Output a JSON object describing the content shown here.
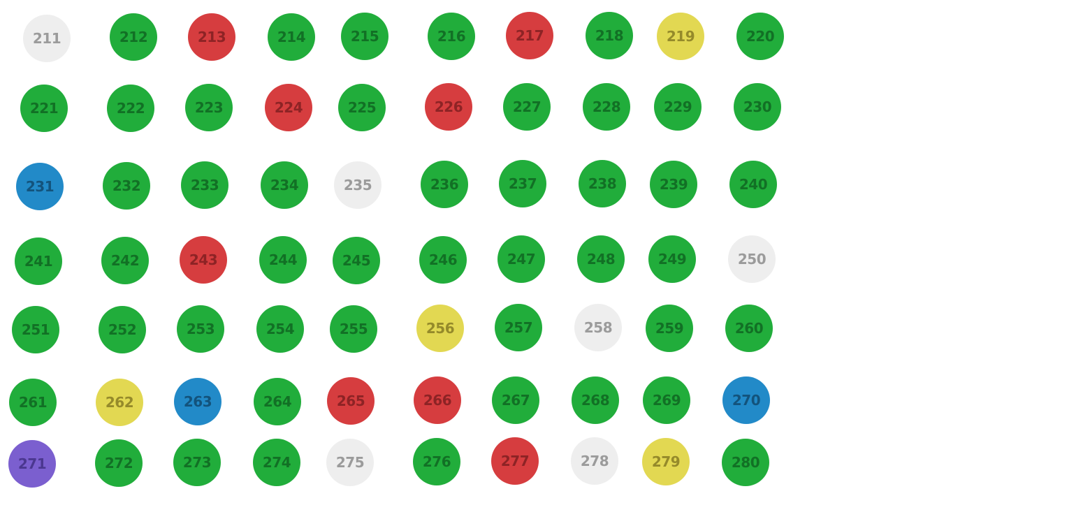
{
  "status_colors": {
    "green": {
      "fill": "#21ad3b",
      "text": "#127025"
    },
    "red": {
      "fill": "#d63d3f",
      "text": "#8d2325"
    },
    "yellow": {
      "fill": "#e2d852",
      "text": "#958a2a"
    },
    "white": {
      "fill": "#eeeeee",
      "text": "#9b9b9b"
    },
    "blue": {
      "fill": "#228ac8",
      "text": "#13537c"
    },
    "purple": {
      "fill": "#7b5fcf",
      "text": "#4b3790"
    }
  },
  "rows": [
    [
      {
        "label": "211",
        "status": "white"
      },
      {
        "label": "212",
        "status": "green"
      },
      {
        "label": "213",
        "status": "red"
      },
      {
        "label": "214",
        "status": "green"
      },
      {
        "label": "215",
        "status": "green"
      },
      {
        "label": "216",
        "status": "green"
      },
      {
        "label": "217",
        "status": "red"
      },
      {
        "label": "218",
        "status": "green"
      },
      {
        "label": "219",
        "status": "yellow"
      },
      {
        "label": "220",
        "status": "green"
      }
    ],
    [
      {
        "label": "221",
        "status": "green"
      },
      {
        "label": "222",
        "status": "green"
      },
      {
        "label": "223",
        "status": "green"
      },
      {
        "label": "224",
        "status": "red"
      },
      {
        "label": "225",
        "status": "green"
      },
      {
        "label": "226",
        "status": "red"
      },
      {
        "label": "227",
        "status": "green"
      },
      {
        "label": "228",
        "status": "green"
      },
      {
        "label": "229",
        "status": "green"
      },
      {
        "label": "230",
        "status": "green"
      }
    ],
    [
      {
        "label": "231",
        "status": "blue"
      },
      {
        "label": "232",
        "status": "green"
      },
      {
        "label": "233",
        "status": "green"
      },
      {
        "label": "234",
        "status": "green"
      },
      {
        "label": "235",
        "status": "white"
      },
      {
        "label": "236",
        "status": "green"
      },
      {
        "label": "237",
        "status": "green"
      },
      {
        "label": "238",
        "status": "green"
      },
      {
        "label": "239",
        "status": "green"
      },
      {
        "label": "240",
        "status": "green"
      }
    ],
    [
      {
        "label": "241",
        "status": "green"
      },
      {
        "label": "242",
        "status": "green"
      },
      {
        "label": "243",
        "status": "red"
      },
      {
        "label": "244",
        "status": "green"
      },
      {
        "label": "245",
        "status": "green"
      },
      {
        "label": "246",
        "status": "green"
      },
      {
        "label": "247",
        "status": "green"
      },
      {
        "label": "248",
        "status": "green"
      },
      {
        "label": "249",
        "status": "green"
      },
      {
        "label": "250",
        "status": "white"
      }
    ],
    [
      {
        "label": "251",
        "status": "green"
      },
      {
        "label": "252",
        "status": "green"
      },
      {
        "label": "253",
        "status": "green"
      },
      {
        "label": "254",
        "status": "green"
      },
      {
        "label": "255",
        "status": "green"
      },
      {
        "label": "256",
        "status": "yellow"
      },
      {
        "label": "257",
        "status": "green"
      },
      {
        "label": "258",
        "status": "white"
      },
      {
        "label": "259",
        "status": "green"
      },
      {
        "label": "260",
        "status": "green"
      }
    ],
    [
      {
        "label": "261",
        "status": "green"
      },
      {
        "label": "262",
        "status": "yellow"
      },
      {
        "label": "263",
        "status": "blue"
      },
      {
        "label": "264",
        "status": "green"
      },
      {
        "label": "265",
        "status": "red"
      },
      {
        "label": "266",
        "status": "red"
      },
      {
        "label": "267",
        "status": "green"
      },
      {
        "label": "268",
        "status": "green"
      },
      {
        "label": "269",
        "status": "green"
      },
      {
        "label": "270",
        "status": "blue"
      }
    ],
    [
      {
        "label": "271",
        "status": "purple"
      },
      {
        "label": "272",
        "status": "green"
      },
      {
        "label": "273",
        "status": "green"
      },
      {
        "label": "274",
        "status": "green"
      },
      {
        "label": "275",
        "status": "white"
      },
      {
        "label": "276",
        "status": "green"
      },
      {
        "label": "277",
        "status": "red"
      },
      {
        "label": "278",
        "status": "white"
      },
      {
        "label": "279",
        "status": "yellow"
      },
      {
        "label": "280",
        "status": "green"
      }
    ]
  ]
}
